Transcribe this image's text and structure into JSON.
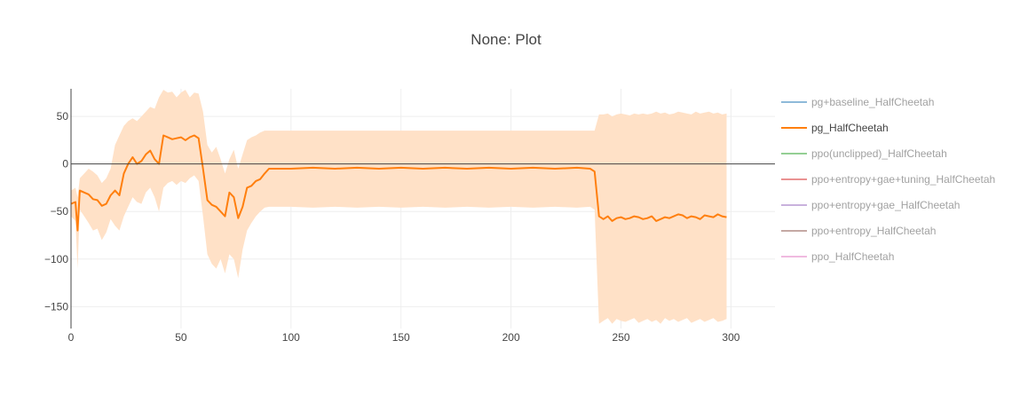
{
  "chart_data": {
    "type": "line",
    "title": "None: Plot",
    "xlabel": "",
    "ylabel": "",
    "xlim": [
      0,
      320
    ],
    "ylim": [
      -173,
      79
    ],
    "x_ticks": [
      0,
      50,
      100,
      150,
      200,
      250,
      300
    ],
    "y_ticks": [
      50,
      0,
      -50,
      -100,
      -150
    ],
    "x_tick_labels": [
      "0",
      "50",
      "100",
      "150",
      "200",
      "250",
      "300"
    ],
    "y_tick_labels": [
      "50",
      "0",
      "−50",
      "−100",
      "−150"
    ],
    "grid": true,
    "legend_position": "right",
    "series": [
      {
        "name": "pg+baseline_HalfCheetah",
        "color": "#1f77b4",
        "visible": false,
        "x": [],
        "y": []
      },
      {
        "name": "pg_HalfCheetah",
        "color": "#ff7f0e",
        "visible": true,
        "band_color": "#ffe1c7",
        "x": [
          0,
          2,
          3,
          4,
          6,
          8,
          10,
          12,
          14,
          16,
          18,
          20,
          22,
          24,
          26,
          28,
          30,
          32,
          34,
          36,
          38,
          40,
          42,
          44,
          46,
          48,
          50,
          52,
          54,
          56,
          58,
          60,
          62,
          64,
          66,
          68,
          70,
          72,
          74,
          76,
          78,
          80,
          82,
          84,
          86,
          88,
          90,
          100,
          110,
          120,
          130,
          140,
          150,
          160,
          170,
          180,
          190,
          200,
          210,
          220,
          230,
          236,
          238,
          240,
          242,
          244,
          246,
          248,
          250,
          252,
          254,
          256,
          258,
          260,
          262,
          264,
          266,
          268,
          270,
          272,
          274,
          276,
          278,
          280,
          282,
          284,
          286,
          288,
          290,
          292,
          294,
          296,
          298
        ],
        "y": [
          -42,
          -40,
          -70,
          -28,
          -30,
          -32,
          -37,
          -38,
          -44,
          -42,
          -33,
          -28,
          -33,
          -10,
          0,
          7,
          0,
          3,
          10,
          14,
          5,
          0,
          30,
          28,
          26,
          27,
          28,
          25,
          28,
          30,
          27,
          -5,
          -38,
          -43,
          -45,
          -50,
          -55,
          -30,
          -35,
          -57,
          -45,
          -25,
          -23,
          -18,
          -16,
          -10,
          -5,
          -5,
          -4,
          -5,
          -4,
          -5,
          -4,
          -5,
          -4,
          -5,
          -4,
          -5,
          -4,
          -5,
          -4,
          -5,
          -8,
          -55,
          -58,
          -55,
          -60,
          -57,
          -56,
          -58,
          -57,
          -55,
          -56,
          -58,
          -57,
          -55,
          -60,
          -58,
          -56,
          -57,
          -55,
          -53,
          -54,
          -57,
          -55,
          -56,
          -58,
          -54,
          -55,
          -56,
          -53,
          -55,
          -56
        ],
        "band_upper": [
          -28,
          -25,
          -35,
          -15,
          -10,
          -5,
          -8,
          -12,
          -20,
          -15,
          -5,
          20,
          30,
          40,
          45,
          48,
          45,
          50,
          55,
          60,
          58,
          70,
          78,
          75,
          76,
          70,
          75,
          78,
          70,
          75,
          74,
          55,
          20,
          12,
          18,
          5,
          -10,
          5,
          15,
          -5,
          10,
          25,
          28,
          30,
          33,
          35,
          35,
          35,
          35,
          35,
          35,
          35,
          35,
          35,
          35,
          35,
          35,
          35,
          35,
          35,
          35,
          35,
          35,
          52,
          52,
          53,
          50,
          52,
          53,
          52,
          51,
          53,
          52,
          53,
          52,
          53,
          55,
          53,
          54,
          52,
          53,
          55,
          54,
          53,
          52,
          55,
          53,
          54,
          55,
          53,
          54,
          52,
          53
        ],
        "band_lower": [
          -55,
          -60,
          -110,
          -48,
          -55,
          -62,
          -70,
          -68,
          -80,
          -72,
          -58,
          -65,
          -70,
          -55,
          -45,
          -35,
          -40,
          -42,
          -30,
          -25,
          -35,
          -50,
          -25,
          -20,
          -18,
          -22,
          -18,
          -20,
          -15,
          -12,
          -18,
          -55,
          -95,
          -105,
          -110,
          -100,
          -115,
          -95,
          -100,
          -120,
          -90,
          -70,
          -62,
          -55,
          -50,
          -46,
          -45,
          -45,
          -46,
          -45,
          -46,
          -45,
          -46,
          -45,
          -46,
          -45,
          -46,
          -45,
          -46,
          -45,
          -46,
          -45,
          -48,
          -168,
          -165,
          -162,
          -168,
          -163,
          -165,
          -166,
          -164,
          -162,
          -167,
          -165,
          -163,
          -166,
          -164,
          -168,
          -162,
          -165,
          -163,
          -166,
          -164,
          -162,
          -167,
          -165,
          -163,
          -166,
          -164,
          -162,
          -166,
          -165,
          -163
        ]
      },
      {
        "name": "ppo(unclipped)_HalfCheetah",
        "color": "#2ca02c",
        "visible": false,
        "x": [],
        "y": []
      },
      {
        "name": "ppo+entropy+gae+tuning_HalfCheetah",
        "color": "#d62728",
        "visible": false,
        "x": [],
        "y": []
      },
      {
        "name": "ppo+entropy+gae_HalfCheetah",
        "color": "#9467bd",
        "visible": false,
        "x": [],
        "y": []
      },
      {
        "name": "ppo+entropy_HalfCheetah",
        "color": "#8c564b",
        "visible": false,
        "x": [],
        "y": []
      },
      {
        "name": "ppo_HalfCheetah",
        "color": "#e377c2",
        "visible": false,
        "x": [],
        "y": []
      }
    ]
  }
}
